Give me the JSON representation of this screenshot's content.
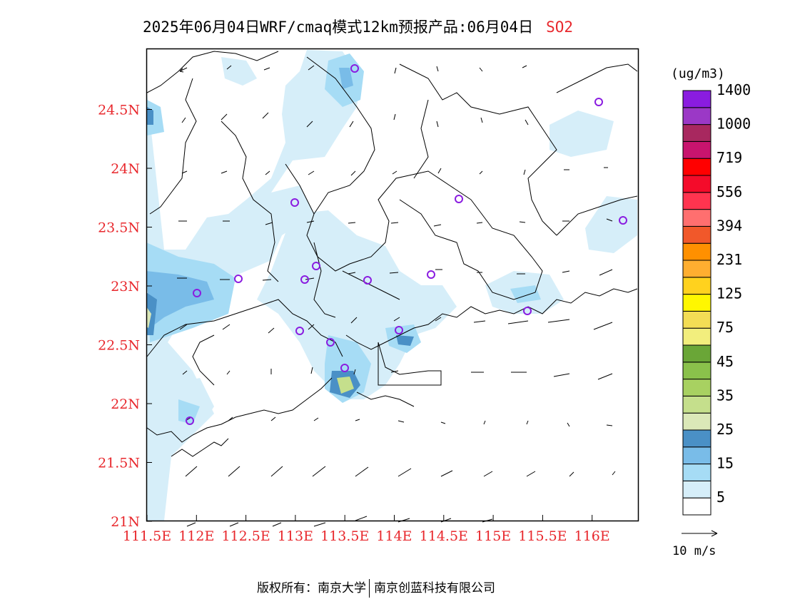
{
  "header": {
    "title": "2025年06月04日WRF/cmaq模式12km预报产品:06月04日",
    "species": "SO2"
  },
  "map": {
    "lon_ticks": [
      "111.5E",
      "112E",
      "112.5E",
      "113E",
      "113.5E",
      "114E",
      "114.5E",
      "115E",
      "115.5E",
      "116E"
    ],
    "lat_ticks": [
      "21N",
      "21.5N",
      "22N",
      "22.5N",
      "23N",
      "23.5N",
      "24N",
      "24.5N"
    ],
    "axis_label_color": "#e8282d",
    "marker_color": "#8a1ce0"
  },
  "colorbar": {
    "unit": "(ug/m3)",
    "colors": [
      "#ffffff",
      "#d6eef9",
      "#a6dcf5",
      "#79bce8",
      "#4a90c6",
      "#dbe8b8",
      "#c5df8c",
      "#a8d161",
      "#8ac14b",
      "#6aa637",
      "#f2ee7d",
      "#f3dd55",
      "#fff700",
      "#ffd21e",
      "#ffae30",
      "#ff9000",
      "#f1582a",
      "#ff6f6f",
      "#ff344f",
      "#f40b2a",
      "#ff0000",
      "#c8146e",
      "#a8285f",
      "#9b38c6",
      "#8a1ce0"
    ],
    "labels": [
      "5",
      "15",
      "25",
      "35",
      "45",
      "75",
      "125",
      "231",
      "394",
      "556",
      "719",
      "1000",
      "1400"
    ]
  },
  "wind_legend": {
    "label": "10 m/s"
  },
  "footer": {
    "left": "版权所有：南京大学",
    "right": "南京创蓝科技有限公司"
  }
}
